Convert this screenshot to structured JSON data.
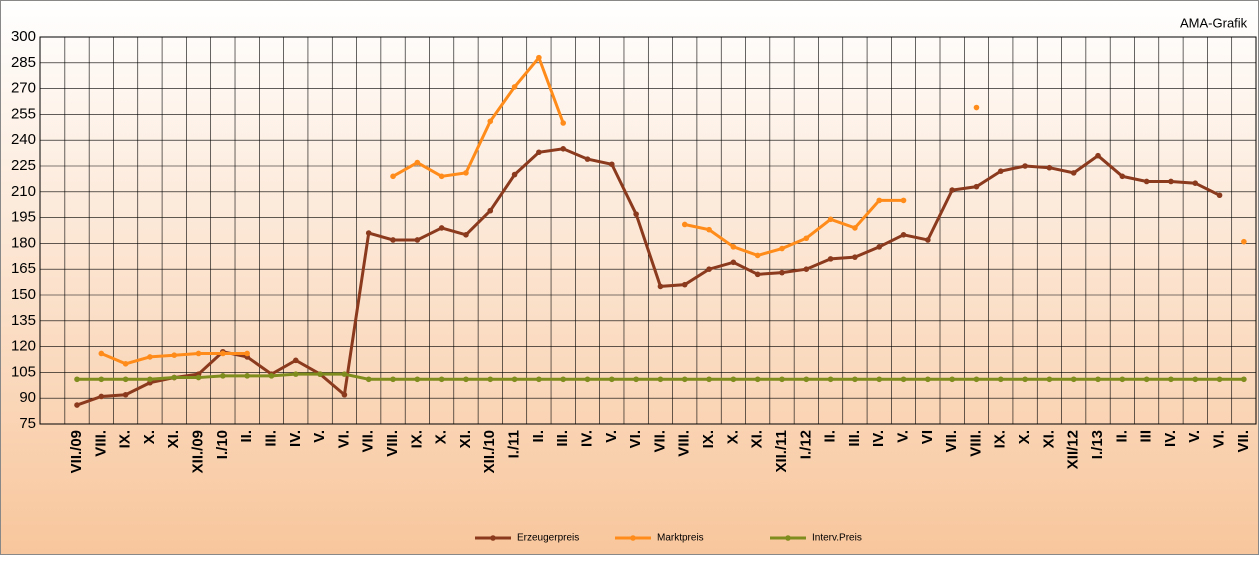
{
  "chart_data": {
    "type": "line",
    "annotation": "AMA-Grafik",
    "categories": [
      "VII./09",
      "VIII.",
      "IX.",
      "X.",
      "XI.",
      "XII./09",
      "I./10",
      "II.",
      "III.",
      "IV.",
      "V.",
      "VI.",
      "VII.",
      "VIII.",
      "IX.",
      "X.",
      "XI.",
      "XII./10",
      "I./11",
      "II.",
      "III.",
      "IV.",
      "V.",
      "VI.",
      "VII.",
      "VIII.",
      "IX.",
      "X.",
      "XI.",
      "XII./11",
      "I./12",
      "II.",
      "III.",
      "IV.",
      "V.",
      "VI",
      "VII.",
      "VIII.",
      "IX.",
      "X.",
      "XI.",
      "XII/12",
      "I./13",
      "II.",
      "III",
      "IV.",
      "V.",
      "VI.",
      "VII."
    ],
    "series": [
      {
        "name": "Erzeugerpreis",
        "color": "#8b3a1e",
        "values": [
          86,
          91,
          92,
          99,
          102,
          104,
          117,
          114,
          104,
          112,
          104,
          92,
          186,
          182,
          182,
          189,
          185,
          199,
          220,
          233,
          235,
          229,
          226,
          197,
          155,
          156,
          165,
          169,
          162,
          163,
          165,
          171,
          172,
          178,
          185,
          182,
          211,
          213,
          222,
          225,
          224,
          221,
          231,
          219,
          216,
          216,
          215,
          208,
          null
        ]
      },
      {
        "name": "Marktpreis",
        "color": "#ff8c1a",
        "values": [
          null,
          116,
          110,
          114,
          115,
          116,
          116,
          116,
          null,
          null,
          null,
          null,
          null,
          219,
          227,
          219,
          221,
          251,
          271,
          288,
          250,
          null,
          null,
          null,
          null,
          191,
          188,
          178,
          173,
          177,
          183,
          194,
          189,
          205,
          205,
          null,
          null,
          259,
          null,
          null,
          null,
          null,
          null,
          null,
          null,
          null,
          null,
          null,
          181
        ]
      },
      {
        "name": "Interv.Preis",
        "color": "#7f8c1e",
        "values": [
          101,
          101,
          101,
          101,
          102,
          102,
          103,
          103,
          103,
          104,
          104,
          104,
          101,
          101,
          101,
          101,
          101,
          101,
          101,
          101,
          101,
          101,
          101,
          101,
          101,
          101,
          101,
          101,
          101,
          101,
          101,
          101,
          101,
          101,
          101,
          101,
          101,
          101,
          101,
          101,
          101,
          101,
          101,
          101,
          101,
          101,
          101,
          101,
          101
        ]
      }
    ],
    "ylim": [
      75,
      300
    ],
    "yticks": [
      75,
      90,
      105,
      120,
      135,
      150,
      165,
      180,
      195,
      210,
      225,
      240,
      255,
      270,
      285,
      300
    ],
    "grid": true
  }
}
